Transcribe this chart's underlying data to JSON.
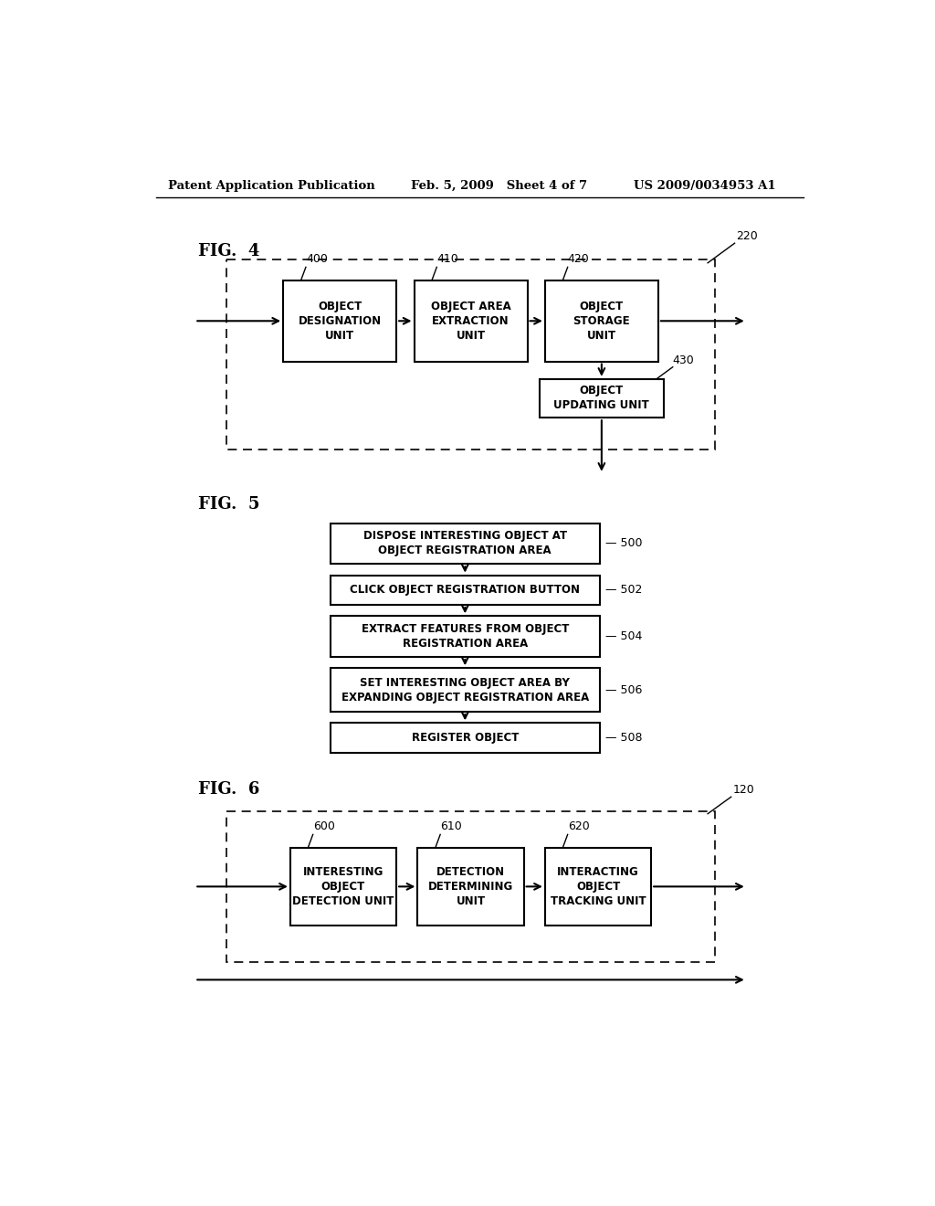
{
  "bg_color": "#ffffff",
  "text_color": "#000000",
  "header_left": "Patent Application Publication",
  "header_mid": "Feb. 5, 2009   Sheet 4 of 7",
  "header_right": "US 2009/0034953 A1",
  "fig4_label": "FIG.  4",
  "fig4_outer_label": "220",
  "fig4_boxes": [
    {
      "label": "400",
      "text": "OBJECT\nDESIGNATION\nUNIT"
    },
    {
      "label": "410",
      "text": "OBJECT AREA\nEXTRACTION\nUNIT"
    },
    {
      "label": "420",
      "text": "OBJECT\nSTORAGE\nUNIT"
    }
  ],
  "fig4_update_label": "430",
  "fig4_update_text": "OBJECT\nUPDATING UNIT",
  "fig5_label": "FIG.  5",
  "fig5_steps": [
    {
      "num": "500",
      "text": "DISPOSE INTERESTING OBJECT AT\nOBJECT REGISTRATION AREA"
    },
    {
      "num": "502",
      "text": "CLICK OBJECT REGISTRATION BUTTON"
    },
    {
      "num": "504",
      "text": "EXTRACT FEATURES FROM OBJECT\nREGISTRATION AREA"
    },
    {
      "num": "506",
      "text": "SET INTERESTING OBJECT AREA BY\nEXPANDING OBJECT REGISTRATION AREA"
    },
    {
      "num": "508",
      "text": "REGISTER OBJECT"
    }
  ],
  "fig6_label": "FIG.  6",
  "fig6_outer_label": "120",
  "fig6_boxes": [
    {
      "label": "600",
      "text": "INTERESTING\nOBJECT\nDETECTION UNIT"
    },
    {
      "label": "610",
      "text": "DETECTION\nDETERMINING\nUNIT"
    },
    {
      "label": "620",
      "text": "INTERACTING\nOBJECT\nTRACKING UNIT"
    }
  ]
}
